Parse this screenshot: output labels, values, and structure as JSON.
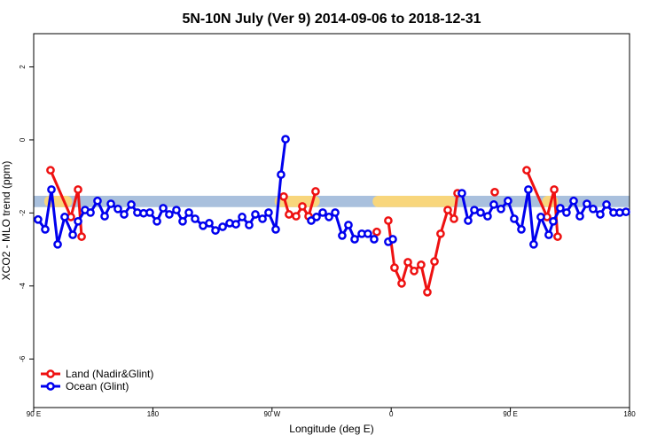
{
  "chart_data": {
    "type": "line",
    "title": "5N-10N July (Ver 9)   2014-09-06 to 2018-12-31",
    "x_label": "Longitude (deg E)",
    "y_label": "XCO2 - MLO trend (ppm)",
    "xlim": [
      90,
      540
    ],
    "ylim": [
      -7.33,
      2.91
    ],
    "xticks": [
      {
        "value": 90,
        "label": "90 E"
      },
      180,
      {
        "value": 270,
        "label": "90 W"
      },
      {
        "value": 360,
        "label": "0"
      },
      {
        "value": 450,
        "label": "90 E"
      },
      {
        "value": 540,
        "label": "180"
      }
    ],
    "yticks": [
      2,
      0,
      -2,
      -4,
      -6
    ],
    "legend": "bottom-left",
    "band": {
      "range": [
        -1.84,
        -1.53
      ],
      "color": "#a9c0dd",
      "highlight_color": "#f8d67c",
      "highlights": [
        [
          98,
          119
        ],
        [
          272,
          306
        ],
        [
          346,
          409
        ],
        [
          474,
          486
        ]
      ]
    },
    "series": [
      {
        "name": "Land (Nadir&Glint)",
        "color": "#ee1111",
        "x": [
          102.7,
          118.1,
          123.5,
          126.2,
          null,
          278.8,
          282.8,
          288.2,
          292.9,
          297.6,
          302.9,
          null,
          349.1,
          null,
          357.8,
          362.5,
          367.9,
          372.6,
          377.3,
          382.6,
          387.3,
          392.7,
          397.3,
          402.7,
          407.4,
          410.1,
          null,
          438.2,
          null,
          462.3,
          477.7,
          483.1,
          485.7
        ],
        "values": [
          -0.83,
          -2.11,
          -1.36,
          -2.65,
          null,
          -1.55,
          -2.04,
          -2.09,
          -1.82,
          -2.09,
          -1.41,
          null,
          -2.52,
          null,
          -2.21,
          -3.5,
          -3.93,
          -3.35,
          -3.59,
          -3.42,
          -4.17,
          -3.33,
          -2.57,
          -1.92,
          -2.16,
          -1.46,
          null,
          -1.43,
          null,
          -0.83,
          -2.11,
          -1.36,
          -2.65
        ]
      },
      {
        "name": "Ocean (Glint)",
        "color": "#0000ee",
        "x": [
          93.3,
          98.7,
          103.4,
          108.1,
          113.4,
          119.5,
          123.5,
          128.8,
          132.9,
          138.2,
          143.6,
          148.3,
          153.6,
          158.3,
          163.7,
          168.3,
          173.0,
          177.7,
          183.1,
          187.8,
          192.4,
          197.8,
          202.5,
          207.2,
          211.9,
          217.9,
          222.6,
          227.3,
          232.7,
          238.0,
          242.7,
          247.4,
          252.7,
          257.4,
          262.8,
          267.4,
          272.8,
          276.8,
          280.2,
          null,
          299.6,
          303.6,
          308.3,
          313.0,
          317.7,
          323.0,
          327.7,
          332.4,
          337.8,
          342.4,
          347.1,
          null,
          357.8,
          361.2,
          null,
          413.4,
          418.1,
          422.8,
          427.5,
          432.8,
          437.5,
          442.9,
          448.2,
          452.9,
          458.3,
          463.6,
          467.6,
          473.0,
          479.0,
          482.4,
          487.7,
          492.4,
          497.8,
          502.5,
          507.8,
          512.5,
          517.9,
          522.6,
          527.9,
          532.6,
          537.3
        ],
        "values": [
          -2.18,
          -2.45,
          -1.36,
          -2.86,
          -2.11,
          -2.6,
          -2.23,
          -1.92,
          -1.99,
          -1.67,
          -2.09,
          -1.75,
          -1.89,
          -2.04,
          -1.77,
          -1.99,
          -2.01,
          -1.99,
          -2.23,
          -1.87,
          -2.04,
          -1.92,
          -2.23,
          -1.99,
          -2.16,
          -2.35,
          -2.28,
          -2.48,
          -2.38,
          -2.28,
          -2.31,
          -2.11,
          -2.33,
          -2.04,
          -2.16,
          -1.99,
          -2.45,
          -0.95,
          0.02,
          null,
          -2.21,
          -2.11,
          -1.99,
          -2.11,
          -1.99,
          -2.62,
          -2.33,
          -2.72,
          -2.57,
          -2.57,
          -2.72,
          null,
          -2.79,
          -2.72,
          null,
          -1.46,
          -2.21,
          -1.92,
          -1.99,
          -2.09,
          -1.77,
          -1.89,
          -1.67,
          -2.16,
          -2.45,
          -1.36,
          -2.86,
          -2.11,
          -2.6,
          -2.23,
          -1.87,
          -1.99,
          -1.67,
          -2.09,
          -1.75,
          -1.89,
          -2.04,
          -1.77,
          -1.99,
          -1.99,
          -1.97
        ]
      }
    ]
  }
}
